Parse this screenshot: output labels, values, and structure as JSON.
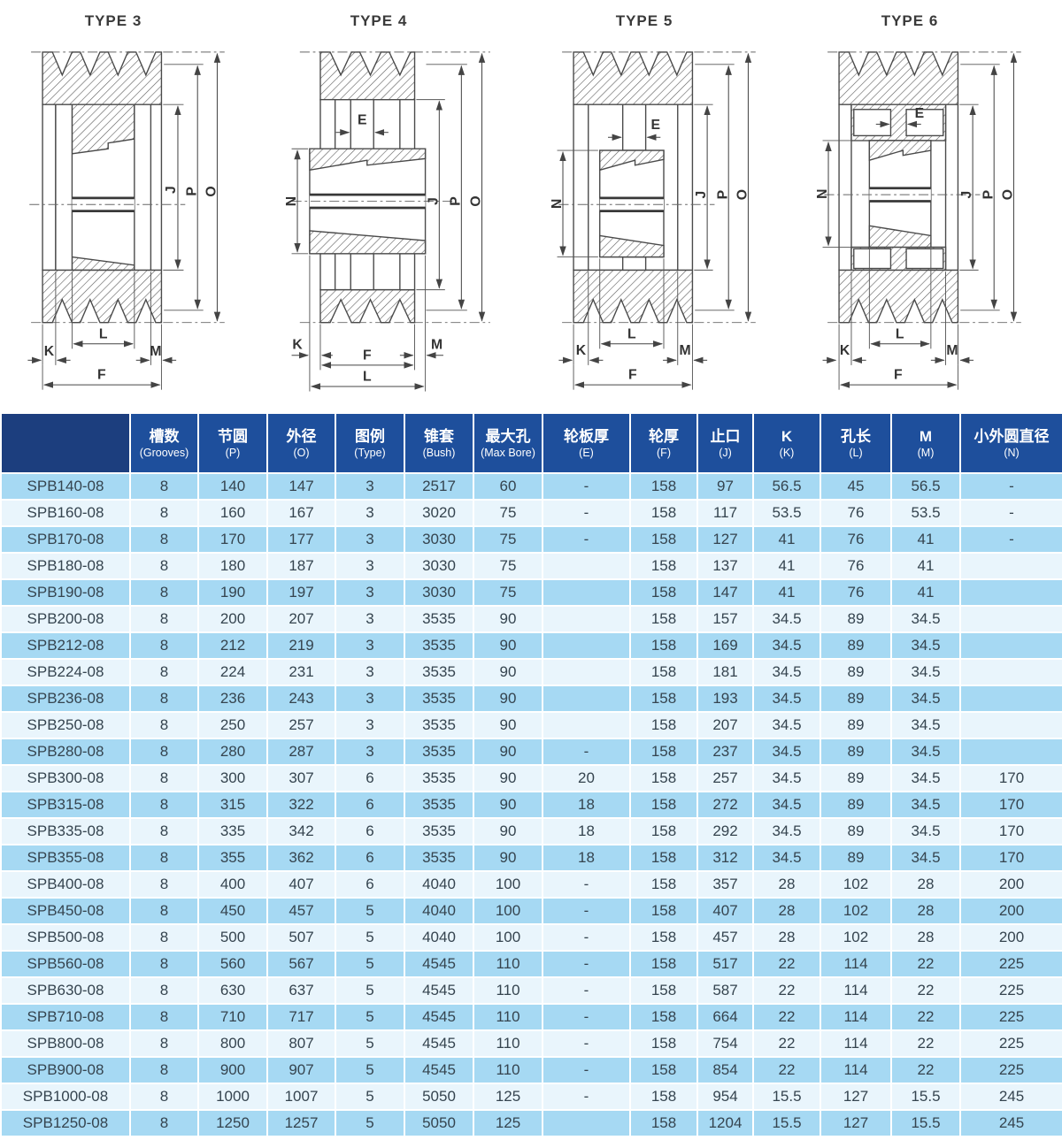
{
  "diagrams": [
    {
      "title": "TYPE 3",
      "dims": {
        "J": "J",
        "P": "P",
        "O": "O",
        "L": "L",
        "K": "K",
        "M": "M",
        "F": "F"
      }
    },
    {
      "title": "TYPE 4",
      "dims": {
        "E": "E",
        "N": "N",
        "J": "J",
        "P": "P",
        "O": "O",
        "K": "K",
        "M": "M",
        "F": "F",
        "L": "L"
      }
    },
    {
      "title": "TYPE 5",
      "dims": {
        "E": "E",
        "N": "N",
        "J": "J",
        "P": "P",
        "O": "O",
        "L": "L",
        "K": "K",
        "M": "M",
        "F": "F"
      }
    },
    {
      "title": "TYPE 6",
      "dims": {
        "E": "E",
        "N": "N",
        "J": "J",
        "P": "P",
        "O": "O",
        "L": "L",
        "K": "K",
        "M": "M",
        "F": "F"
      }
    }
  ],
  "table": {
    "header": [
      {
        "line1": "",
        "line2": ""
      },
      {
        "line1": "槽数",
        "line2": "(Grooves)"
      },
      {
        "line1": "节圆",
        "line2": "(P)"
      },
      {
        "line1": "外径",
        "line2": "(O)"
      },
      {
        "line1": "图例",
        "line2": "(Type)"
      },
      {
        "line1": "锥套",
        "line2": "(Bush)"
      },
      {
        "line1": "最大孔",
        "line2": "(Max Bore)"
      },
      {
        "line1": "轮板厚",
        "line2": "(E)"
      },
      {
        "line1": "轮厚",
        "line2": "(F)"
      },
      {
        "line1": "止口",
        "line2": "(J)"
      },
      {
        "line1": "K",
        "line2": "(K)"
      },
      {
        "line1": "孔长",
        "line2": "(L)"
      },
      {
        "line1": "M",
        "line2": "(M)"
      },
      {
        "line1": "小外圆直径",
        "line2": "(N)"
      }
    ],
    "rows": [
      [
        "SPB140-08",
        "8",
        "140",
        "147",
        "3",
        "2517",
        "60",
        "-",
        "158",
        "97",
        "56.5",
        "45",
        "56.5",
        "-"
      ],
      [
        "SPB160-08",
        "8",
        "160",
        "167",
        "3",
        "3020",
        "75",
        "-",
        "158",
        "117",
        "53.5",
        "76",
        "53.5",
        "-"
      ],
      [
        "SPB170-08",
        "8",
        "170",
        "177",
        "3",
        "3030",
        "75",
        "-",
        "158",
        "127",
        "41",
        "76",
        "41",
        "-"
      ],
      [
        "SPB180-08",
        "8",
        "180",
        "187",
        "3",
        "3030",
        "75",
        "",
        "158",
        "137",
        "41",
        "76",
        "41",
        ""
      ],
      [
        "SPB190-08",
        "8",
        "190",
        "197",
        "3",
        "3030",
        "75",
        "",
        "158",
        "147",
        "41",
        "76",
        "41",
        ""
      ],
      [
        "SPB200-08",
        "8",
        "200",
        "207",
        "3",
        "3535",
        "90",
        "",
        "158",
        "157",
        "34.5",
        "89",
        "34.5",
        ""
      ],
      [
        "SPB212-08",
        "8",
        "212",
        "219",
        "3",
        "3535",
        "90",
        "",
        "158",
        "169",
        "34.5",
        "89",
        "34.5",
        ""
      ],
      [
        "SPB224-08",
        "8",
        "224",
        "231",
        "3",
        "3535",
        "90",
        "",
        "158",
        "181",
        "34.5",
        "89",
        "34.5",
        ""
      ],
      [
        "SPB236-08",
        "8",
        "236",
        "243",
        "3",
        "3535",
        "90",
        "",
        "158",
        "193",
        "34.5",
        "89",
        "34.5",
        ""
      ],
      [
        "SPB250-08",
        "8",
        "250",
        "257",
        "3",
        "3535",
        "90",
        "",
        "158",
        "207",
        "34.5",
        "89",
        "34.5",
        ""
      ],
      [
        "SPB280-08",
        "8",
        "280",
        "287",
        "3",
        "3535",
        "90",
        "-",
        "158",
        "237",
        "34.5",
        "89",
        "34.5",
        ""
      ],
      [
        "SPB300-08",
        "8",
        "300",
        "307",
        "6",
        "3535",
        "90",
        "20",
        "158",
        "257",
        "34.5",
        "89",
        "34.5",
        "170"
      ],
      [
        "SPB315-08",
        "8",
        "315",
        "322",
        "6",
        "3535",
        "90",
        "18",
        "158",
        "272",
        "34.5",
        "89",
        "34.5",
        "170"
      ],
      [
        "SPB335-08",
        "8",
        "335",
        "342",
        "6",
        "3535",
        "90",
        "18",
        "158",
        "292",
        "34.5",
        "89",
        "34.5",
        "170"
      ],
      [
        "SPB355-08",
        "8",
        "355",
        "362",
        "6",
        "3535",
        "90",
        "18",
        "158",
        "312",
        "34.5",
        "89",
        "34.5",
        "170"
      ],
      [
        "SPB400-08",
        "8",
        "400",
        "407",
        "6",
        "4040",
        "100",
        "-",
        "158",
        "357",
        "28",
        "102",
        "28",
        "200"
      ],
      [
        "SPB450-08",
        "8",
        "450",
        "457",
        "5",
        "4040",
        "100",
        "-",
        "158",
        "407",
        "28",
        "102",
        "28",
        "200"
      ],
      [
        "SPB500-08",
        "8",
        "500",
        "507",
        "5",
        "4040",
        "100",
        "-",
        "158",
        "457",
        "28",
        "102",
        "28",
        "200"
      ],
      [
        "SPB560-08",
        "8",
        "560",
        "567",
        "5",
        "4545",
        "110",
        "-",
        "158",
        "517",
        "22",
        "114",
        "22",
        "225"
      ],
      [
        "SPB630-08",
        "8",
        "630",
        "637",
        "5",
        "4545",
        "110",
        "-",
        "158",
        "587",
        "22",
        "114",
        "22",
        "225"
      ],
      [
        "SPB710-08",
        "8",
        "710",
        "717",
        "5",
        "4545",
        "110",
        "-",
        "158",
        "664",
        "22",
        "114",
        "22",
        "225"
      ],
      [
        "SPB800-08",
        "8",
        "800",
        "807",
        "5",
        "4545",
        "110",
        "-",
        "158",
        "754",
        "22",
        "114",
        "22",
        "225"
      ],
      [
        "SPB900-08",
        "8",
        "900",
        "907",
        "5",
        "4545",
        "110",
        "-",
        "158",
        "854",
        "22",
        "114",
        "22",
        "225"
      ],
      [
        "SPB1000-08",
        "8",
        "1000",
        "1007",
        "5",
        "5050",
        "125",
        "-",
        "158",
        "954",
        "15.5",
        "127",
        "15.5",
        "245"
      ],
      [
        "SPB1250-08",
        "8",
        "1250",
        "1257",
        "5",
        "5050",
        "125",
        "",
        "158",
        "1204",
        "15.5",
        "127",
        "15.5",
        "245"
      ]
    ]
  },
  "colors": {
    "header_bg": "#1e4f9c",
    "header_first_bg": "#1c3e7e",
    "row_odd": "#a6d9f3",
    "row_even": "#e9f5fc",
    "body_text": "#35444f",
    "header_text": "#ffffff",
    "line": "#4a4a4a"
  }
}
